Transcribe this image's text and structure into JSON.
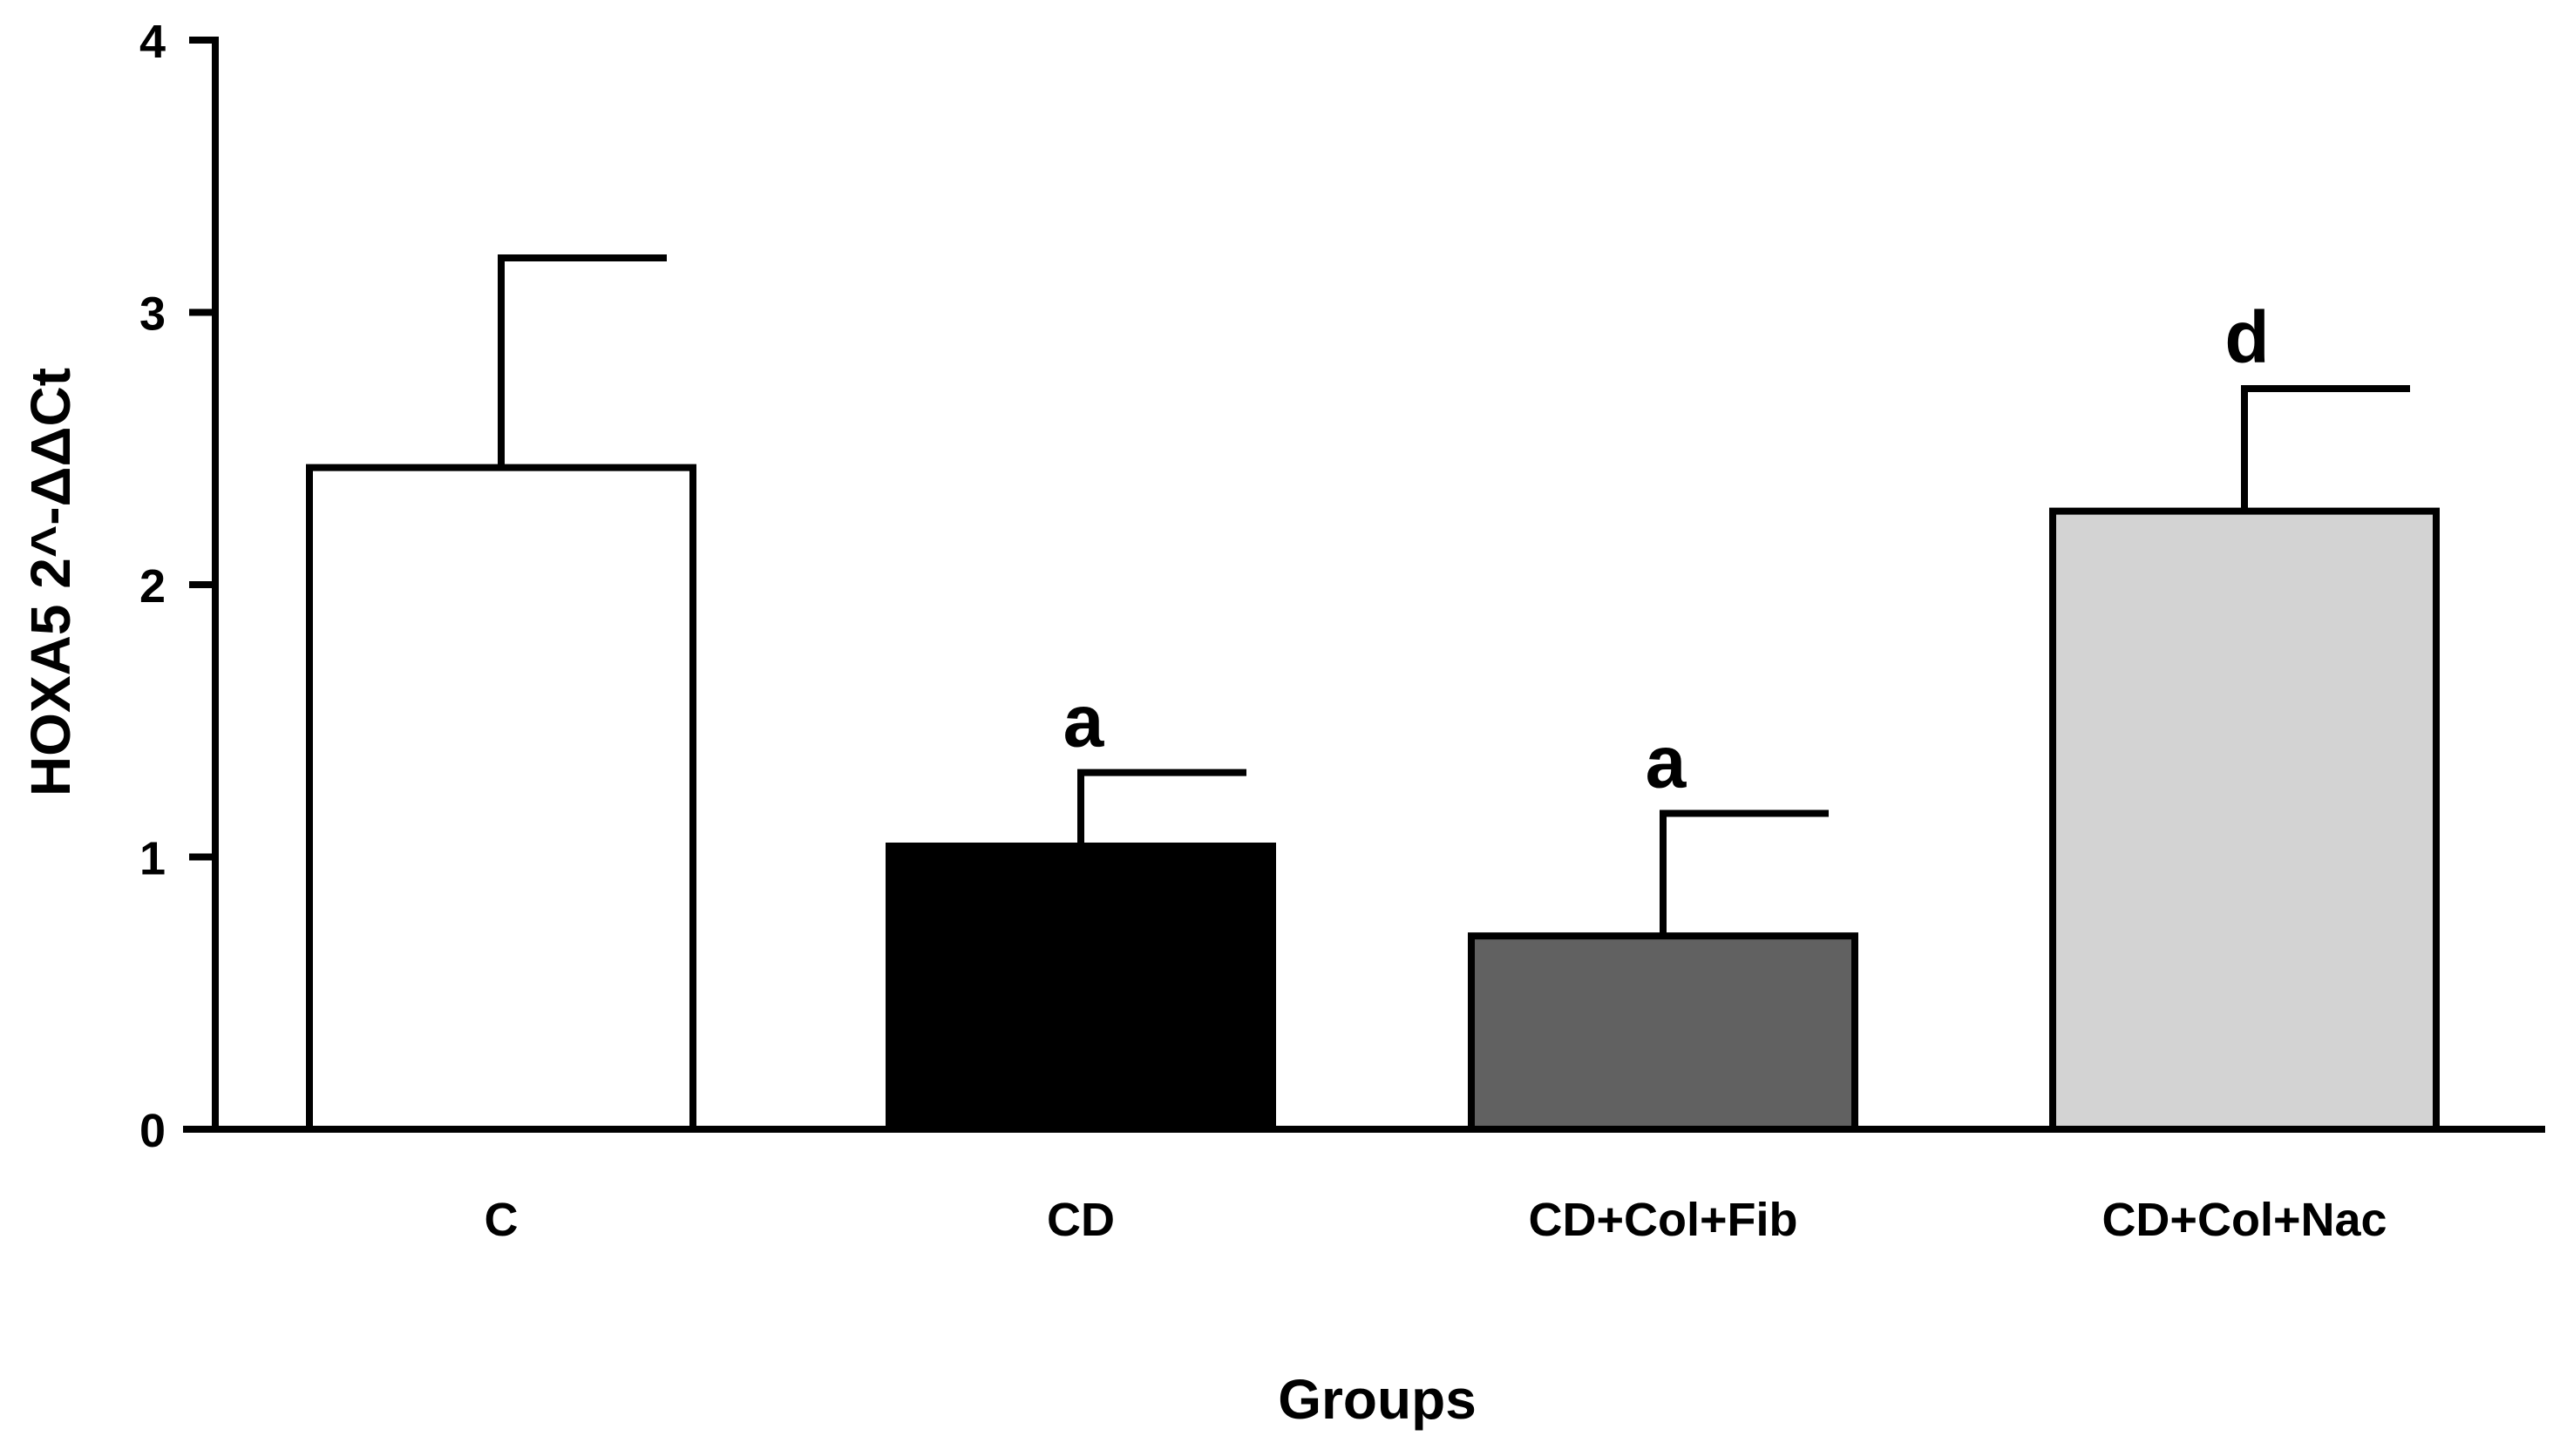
{
  "chart_data": {
    "type": "bar",
    "title": "",
    "xlabel": "Groups",
    "ylabel": "HOXA5 2^-ΔΔCt",
    "ylim": [
      0,
      4
    ],
    "yticks": [
      0,
      1,
      2,
      3,
      4
    ],
    "ytick_labels": [
      "0",
      "1",
      "2",
      "3",
      "4"
    ],
    "grid": false,
    "legend": "none",
    "categories": [
      "C",
      "CD",
      "CD+Col+Fib",
      "CD+Col+Nac"
    ],
    "values": [
      2.43,
      1.04,
      0.71,
      2.27
    ],
    "error_upper": [
      3.2,
      1.31,
      1.16,
      2.72
    ],
    "significance": [
      "",
      "a",
      "a",
      "d"
    ],
    "bar_colors": [
      "#ffffff",
      "#000000",
      "#616161",
      "#d3d3d3"
    ]
  }
}
